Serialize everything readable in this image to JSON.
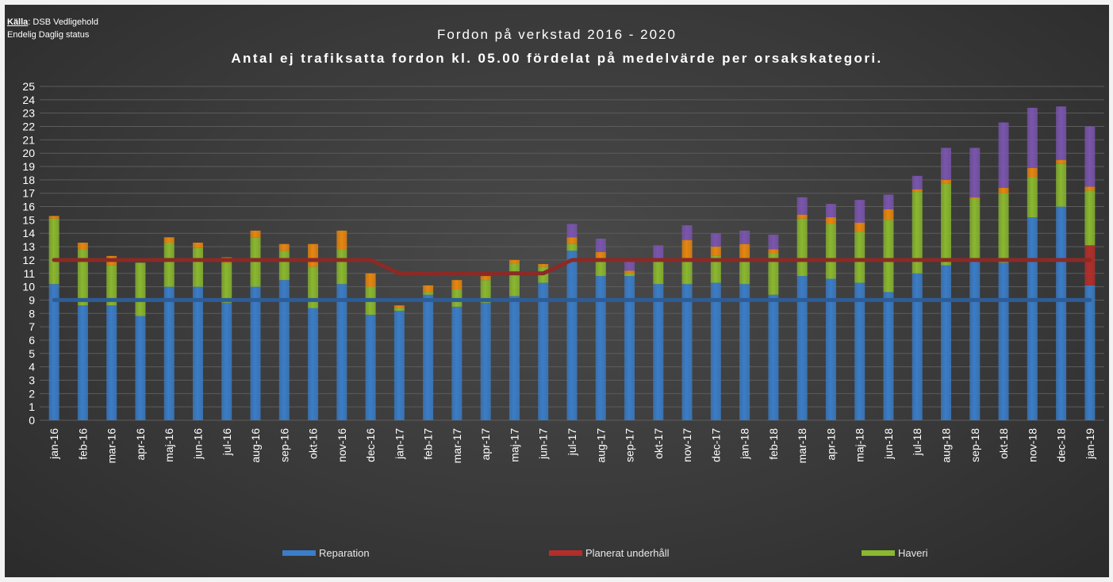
{
  "source": {
    "label": "Källa",
    "text": ": DSB Vedligehold",
    "line2": "Endelig Daglig status"
  },
  "colors": {
    "reparation": "#3a7dc8",
    "planerat": "#b32e2a",
    "haveri": "#8ab82e",
    "orange": "#e8860e",
    "purple": "#7a55ad",
    "line_red": "#8c2a26",
    "line_blue": "#2d5c96",
    "text": "#ffffff",
    "grid": "#5c5c5c"
  },
  "chart_data": {
    "type": "bar",
    "stacked": true,
    "title": "Fordon på verkstad 2016 - 2020",
    "subtitle": "Antal ej trafiksatta fordon kl. 05.00 fördelat på medelvärde per orsakskategori.",
    "ylim": [
      0,
      25
    ],
    "yticks": [
      0,
      1,
      2,
      3,
      4,
      5,
      6,
      7,
      8,
      9,
      10,
      11,
      12,
      13,
      14,
      15,
      16,
      17,
      18,
      19,
      20,
      21,
      22,
      23,
      24,
      25
    ],
    "grid": true,
    "legend_position": "bottom",
    "categories": [
      "jan-16",
      "feb-16",
      "mar-16",
      "apr-16",
      "maj-16",
      "jun-16",
      "jul-16",
      "aug-16",
      "sep-16",
      "okt-16",
      "nov-16",
      "dec-16",
      "jan-17",
      "feb-17",
      "mar-17",
      "apr-17",
      "maj-17",
      "jun-17",
      "jul-17",
      "aug-17",
      "sep-17",
      "okt-17",
      "nov-17",
      "dec-17",
      "jan-18",
      "feb-18",
      "mar-18",
      "apr-18",
      "maj-18",
      "jun-18",
      "jul-18",
      "aug-18",
      "sep-18",
      "okt-18",
      "nov-18",
      "dec-18",
      "jan-19"
    ],
    "series": [
      {
        "name": "Reparation",
        "color": "#3a7dc8",
        "values": [
          10.2,
          8.6,
          8.6,
          7.8,
          10.0,
          10.0,
          8.8,
          10.0,
          10.5,
          8.4,
          10.2,
          7.9,
          8.2,
          9.4,
          8.5,
          8.8,
          9.3,
          10.3,
          12.7,
          10.8,
          10.8,
          10.2,
          10.2,
          10.3,
          10.2,
          9.4,
          10.8,
          10.6,
          10.3,
          9.6,
          11.0,
          11.6,
          11.9,
          11.8,
          15.2,
          16.0,
          10.1
        ]
      },
      {
        "name": "Planerat underhåll",
        "color": "#b32e2a",
        "values": [
          0,
          0,
          0,
          0,
          0,
          0,
          0,
          0,
          0,
          0,
          0,
          0,
          0,
          0,
          0,
          0,
          0,
          0,
          0,
          0,
          0,
          0,
          0,
          0,
          0,
          0,
          0,
          0,
          0,
          0,
          0,
          0,
          0,
          0,
          0,
          0,
          3.0
        ]
      },
      {
        "name": "Haveri",
        "color": "#8ab82e",
        "values": [
          4.9,
          4.2,
          3.0,
          4.0,
          3.3,
          2.9,
          3.0,
          3.7,
          2.2,
          3.1,
          2.6,
          2.1,
          0.2,
          0.2,
          1.3,
          1.7,
          2.4,
          1.2,
          0.5,
          1.1,
          0.2,
          1.8,
          1.8,
          2.0,
          2.0,
          3.1,
          4.3,
          4.1,
          3.8,
          5.4,
          6.1,
          6.1,
          4.7,
          5.2,
          3.0,
          3.2,
          4.1
        ]
      },
      {
        "name": "",
        "color": "#e8860e",
        "values": [
          0.2,
          0.5,
          0.7,
          0,
          0.4,
          0.4,
          0.4,
          0.5,
          0.5,
          1.7,
          1.4,
          1.0,
          0.2,
          0.5,
          0.7,
          0.3,
          0.3,
          0.2,
          0.5,
          0.7,
          0.2,
          0,
          1.5,
          0.7,
          1.0,
          0.3,
          0.3,
          0.5,
          0.7,
          0.8,
          0.2,
          0.3,
          0.1,
          0.4,
          0.7,
          0.3,
          0.3
        ]
      },
      {
        "name": "",
        "color": "#7a55ad",
        "values": [
          0,
          0,
          0,
          0,
          0,
          0,
          0,
          0,
          0,
          0,
          0,
          0,
          0,
          0,
          0,
          0,
          0,
          0,
          1.0,
          1.0,
          0.8,
          1.1,
          1.1,
          1.0,
          1.0,
          1.1,
          1.3,
          1.0,
          1.7,
          1.1,
          1.0,
          2.4,
          3.7,
          4.9,
          4.5,
          4.0,
          4.5
        ]
      }
    ],
    "reference_lines": [
      {
        "name": "Planerat underhåll",
        "color": "#8c2a26",
        "values": [
          12,
          12,
          12,
          12,
          12,
          12,
          12,
          12,
          12,
          12,
          12,
          12,
          11,
          11,
          11,
          11,
          11,
          11,
          12,
          12,
          12,
          12,
          12,
          12,
          12,
          12,
          12,
          12,
          12,
          12,
          12,
          12,
          12,
          12,
          12,
          12,
          12
        ]
      },
      {
        "name": "Reparation",
        "color": "#2d5c96",
        "values": [
          9,
          9,
          9,
          9,
          9,
          9,
          9,
          9,
          9,
          9,
          9,
          9,
          9,
          9,
          9,
          9,
          9,
          9,
          9,
          9,
          9,
          9,
          9,
          9,
          9,
          9,
          9,
          9,
          9,
          9,
          9,
          9,
          9,
          9,
          9,
          9,
          9
        ]
      }
    ],
    "legend": [
      {
        "label": "Reparation",
        "color": "#3a7dc8"
      },
      {
        "label": "Planerat underhåll",
        "color": "#b32e2a"
      },
      {
        "label": "Haveri",
        "color": "#8ab82e"
      }
    ]
  }
}
